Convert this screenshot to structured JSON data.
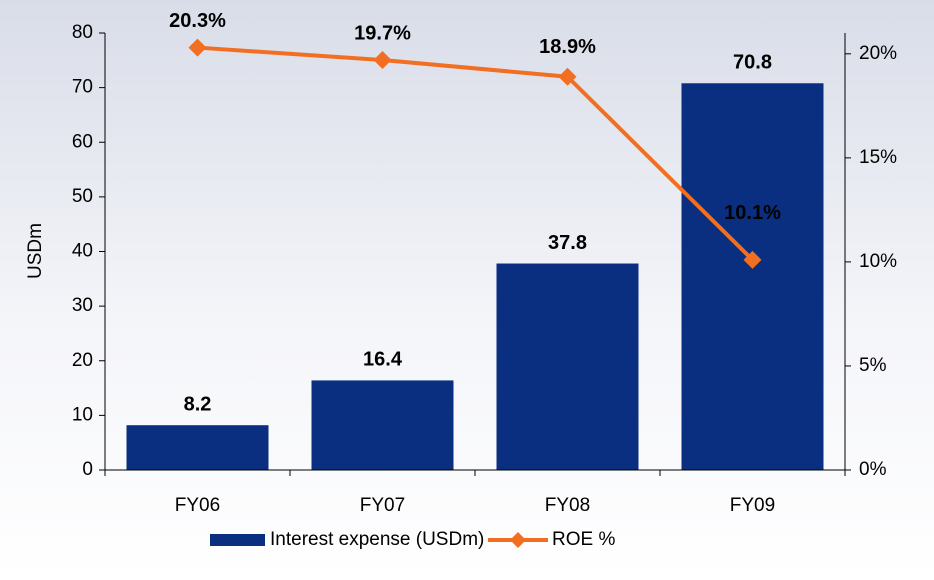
{
  "chart_data": {
    "type": "bar-line",
    "categories": [
      "FY06",
      "FY07",
      "FY08",
      "FY09"
    ],
    "ylabel": "USDm",
    "ylim": [
      0,
      80
    ],
    "yticks": [
      0,
      10,
      20,
      30,
      40,
      50,
      60,
      70,
      80
    ],
    "y2lim": [
      0,
      21
    ],
    "y2ticks": [
      {
        "value": 0,
        "label": "0%"
      },
      {
        "value": 5,
        "label": "5%"
      },
      {
        "value": 10,
        "label": "10%"
      },
      {
        "value": 15,
        "label": "15%"
      },
      {
        "value": 20,
        "label": "20%"
      }
    ],
    "series": [
      {
        "name": "Interest expense (USDm)",
        "type": "bar",
        "color": "#0b2f80",
        "axis": "y",
        "values": [
          8.2,
          16.4,
          37.8,
          70.8
        ]
      },
      {
        "name": "ROE %",
        "type": "line",
        "color": "#f26f21",
        "axis": "y2",
        "values": [
          20.3,
          19.7,
          18.9,
          10.1
        ],
        "value_labels": [
          "20.3%",
          "19.7%",
          "18.9%",
          "10.1%"
        ]
      }
    ]
  }
}
